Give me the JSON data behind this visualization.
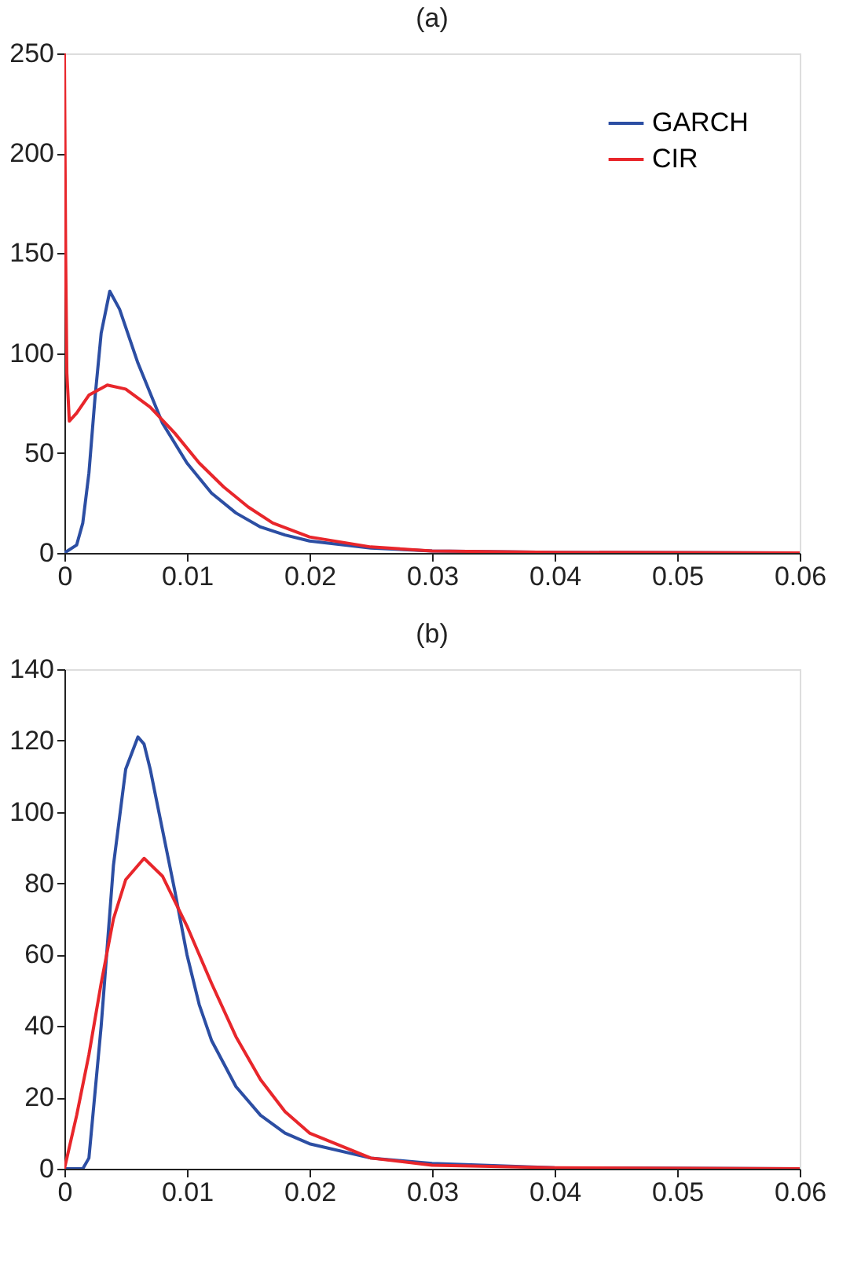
{
  "chart_data": [
    {
      "type": "line",
      "title": "(a)",
      "xlim": [
        0,
        0.06
      ],
      "xticks": [
        0,
        0.01,
        0.02,
        0.03,
        0.04,
        0.05,
        0.06
      ],
      "ylim": [
        0,
        250
      ],
      "yticks": [
        0,
        50,
        100,
        150,
        200,
        250
      ],
      "grid": false,
      "legend": "top right",
      "series": [
        {
          "name": "GARCH",
          "color": "#2c4ea3",
          "x": [
            0,
            0.001,
            0.0015,
            0.002,
            0.0025,
            0.003,
            0.0037,
            0.0045,
            0.006,
            0.008,
            0.01,
            0.012,
            0.014,
            0.016,
            0.018,
            0.02,
            0.025,
            0.03,
            0.04,
            0.06
          ],
          "values": [
            0,
            4,
            15,
            40,
            78,
            110,
            131,
            122,
            95,
            65,
            45,
            30,
            20,
            13,
            9,
            6,
            2.5,
            1,
            0.3,
            0
          ]
        },
        {
          "name": "CIR",
          "color": "#e8262b",
          "x": [
            0,
            0.0001,
            0.0002,
            0.0004,
            0.001,
            0.002,
            0.0035,
            0.005,
            0.007,
            0.009,
            0.011,
            0.013,
            0.015,
            0.017,
            0.02,
            0.025,
            0.03,
            0.04,
            0.06
          ],
          "values": [
            250,
            150,
            90,
            66,
            70,
            79,
            84,
            82,
            73,
            60,
            45,
            33,
            23,
            15,
            8,
            3,
            1,
            0.3,
            0
          ]
        }
      ]
    },
    {
      "type": "line",
      "title": "(b)",
      "xlim": [
        0,
        0.06
      ],
      "xticks": [
        0,
        0.01,
        0.02,
        0.03,
        0.04,
        0.05,
        0.06
      ],
      "ylim": [
        0,
        140
      ],
      "yticks": [
        0,
        20,
        40,
        60,
        80,
        100,
        120,
        140
      ],
      "grid": false,
      "legend": "top right",
      "series": [
        {
          "name": "GARCH",
          "color": "#2c4ea3",
          "x": [
            0,
            0.0015,
            0.002,
            0.003,
            0.004,
            0.005,
            0.006,
            0.0065,
            0.007,
            0.008,
            0.009,
            0.01,
            0.011,
            0.012,
            0.014,
            0.016,
            0.018,
            0.02,
            0.025,
            0.03,
            0.04,
            0.06
          ],
          "values": [
            0,
            0,
            3,
            40,
            85,
            112,
            121,
            119,
            112,
            95,
            78,
            60,
            46,
            36,
            23,
            15,
            10,
            7,
            3,
            1.5,
            0.3,
            0
          ]
        },
        {
          "name": "CIR",
          "color": "#e8262b",
          "x": [
            0,
            0.001,
            0.002,
            0.003,
            0.004,
            0.005,
            0.0065,
            0.008,
            0.01,
            0.012,
            0.014,
            0.016,
            0.018,
            0.02,
            0.025,
            0.03,
            0.04,
            0.06
          ],
          "values": [
            0,
            15,
            32,
            52,
            70,
            81,
            87,
            82,
            68,
            52,
            37,
            25,
            16,
            10,
            3,
            1,
            0.3,
            0
          ]
        }
      ]
    }
  ]
}
